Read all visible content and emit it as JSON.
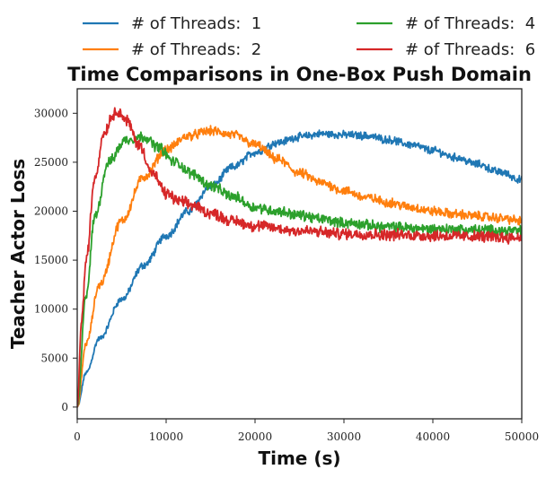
{
  "chart_data": {
    "type": "line",
    "title": "Time Comparisons in One-Box Push Domain",
    "xlabel": "Time (s)",
    "ylabel": "Teacher Actor Loss",
    "xlim": [
      0,
      50000
    ],
    "ylim": [
      -1200,
      32500
    ],
    "xticks": [
      0,
      10000,
      20000,
      30000,
      40000,
      50000
    ],
    "xtick_labels": [
      "0",
      "10000",
      "20000",
      "30000",
      "40000",
      "50000"
    ],
    "yticks": [
      0,
      5000,
      10000,
      15000,
      20000,
      25000,
      30000
    ],
    "ytick_labels": [
      "0",
      "5000",
      "10000",
      "15000",
      "20000",
      "25000",
      "30000"
    ],
    "grid": false,
    "legend_position": "top (above plot, two columns)",
    "series": [
      {
        "name": "# of Threads:  1",
        "color": "#1f77b4",
        "noise": 320,
        "x": [
          0,
          1000,
          2500,
          5000,
          7500,
          10000,
          12500,
          15000,
          17500,
          20000,
          22500,
          25000,
          27500,
          30000,
          32500,
          35000,
          37500,
          40000,
          42500,
          45000,
          47500,
          50000
        ],
        "y": [
          0,
          3500,
          7000,
          11000,
          14500,
          17500,
          20000,
          22500,
          24500,
          26000,
          27000,
          27600,
          27900,
          27800,
          27700,
          27300,
          26800,
          26200,
          25500,
          24800,
          24000,
          23200
        ]
      },
      {
        "name": "# of Threads:  2",
        "color": "#ff7f0e",
        "noise": 380,
        "x": [
          0,
          1000,
          2500,
          5000,
          7500,
          10000,
          12500,
          15000,
          17500,
          20000,
          22500,
          25000,
          27500,
          30000,
          32500,
          35000,
          37500,
          40000,
          42500,
          45000,
          47500,
          50000
        ],
        "y": [
          0,
          6500,
          12500,
          19000,
          23500,
          26300,
          27700,
          28200,
          27800,
          26800,
          25300,
          23900,
          22900,
          22100,
          21400,
          20900,
          20400,
          20000,
          19700,
          19500,
          19300,
          19000
        ]
      },
      {
        "name": "# of Threads:  4",
        "color": "#2ca02c",
        "noise": 420,
        "x": [
          0,
          1000,
          2000,
          3500,
          5500,
          7500,
          9000,
          11000,
          13000,
          15000,
          17500,
          20000,
          22500,
          25000,
          27500,
          30000,
          35000,
          40000,
          45000,
          50000
        ],
        "y": [
          0,
          11500,
          19500,
          25000,
          27300,
          27600,
          26600,
          25000,
          23800,
          22600,
          21500,
          20400,
          20000,
          19600,
          19200,
          18800,
          18400,
          18200,
          18100,
          18000
        ]
      },
      {
        "name": "# of Threads:  6",
        "color": "#d62728",
        "noise": 460,
        "x": [
          0,
          500,
          1000,
          2000,
          3000,
          4000,
          4500,
          5500,
          7000,
          8500,
          10000,
          11500,
          13000,
          15000,
          17500,
          20000,
          25000,
          30000,
          35000,
          40000,
          45000,
          50000
        ],
        "y": [
          0,
          9000,
          15000,
          23500,
          28000,
          29800,
          30300,
          29300,
          26700,
          23800,
          21800,
          21000,
          20600,
          19800,
          19000,
          18500,
          18000,
          17700,
          17600,
          17500,
          17400,
          17300
        ]
      }
    ]
  }
}
